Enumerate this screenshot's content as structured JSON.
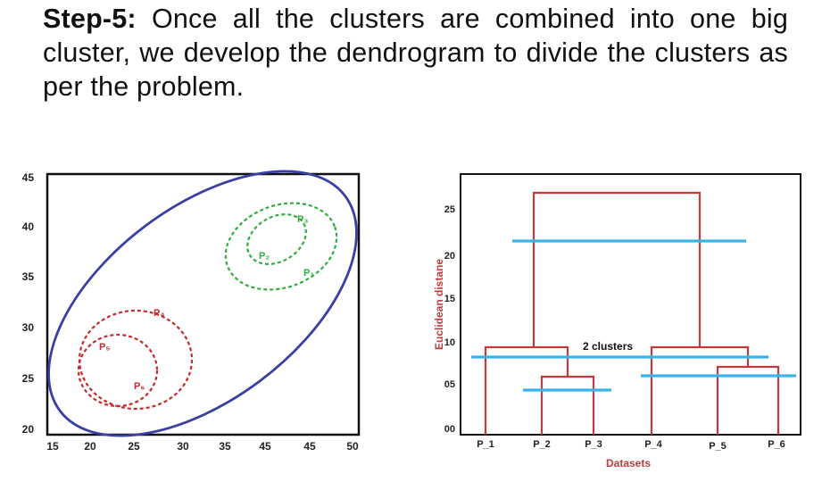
{
  "heading": {
    "step_label": "Step-5:",
    "text": "Once all the clusters are combined into one big cluster, we develop the dendrogram to divide the clusters as per the problem."
  },
  "scatter": {
    "y_ticks": [
      "45",
      "40",
      "35",
      "30",
      "25",
      "20"
    ],
    "x_ticks": [
      "15",
      "20",
      "25",
      "30",
      "35",
      "45",
      "45",
      "50"
    ],
    "points": {
      "p3": "P₃",
      "p2": "P₂",
      "p1": "P₁",
      "p4": "P₄",
      "p5": "P₅",
      "p6": "P₆"
    },
    "colors": {
      "outer": "#3a3fa5",
      "green": "#2fae3f",
      "red": "#c42b2b"
    }
  },
  "dendrogram": {
    "ylabel": "Euclidean distane",
    "xlabel": "Datasets",
    "y_ticks": [
      "25",
      "20",
      "15",
      "10",
      "05",
      "00"
    ],
    "leaves": [
      "P_1",
      "P_2",
      "P_3",
      "P_4",
      "P_5",
      "P_6"
    ],
    "annotation": "2 clusters",
    "colors": {
      "tree": "#c23a3a",
      "cut": "#3ab4e8",
      "xlabel": "#c23a3a"
    }
  }
}
